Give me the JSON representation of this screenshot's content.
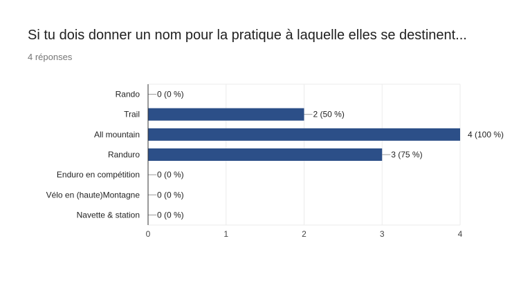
{
  "form": {
    "question": "Si tu dois donner un nom pour la pratique à laquelle elles se destinent...",
    "responses": "4 réponses"
  },
  "colors": {
    "bar": "#2c4f88",
    "grid": "#ebebeb",
    "axis": "#333333",
    "connector": "#999999"
  },
  "chart_data": {
    "type": "bar",
    "orientation": "horizontal",
    "categories": [
      "Rando",
      "Trail",
      "All mountain",
      "Randuro",
      "Enduro en compétition",
      "Vélo en (haute)Montagne",
      "Navette & station"
    ],
    "values": [
      0,
      2,
      4,
      3,
      0,
      0,
      0
    ],
    "value_labels": [
      "0 (0 %)",
      "2 (50 %)",
      "4 (100 %)",
      "3 (75 %)",
      "0 (0 %)",
      "0 (0 %)",
      "0 (0 %)"
    ],
    "xticks": [
      "0",
      "1",
      "2",
      "3",
      "4"
    ],
    "xlim": [
      0,
      4
    ],
    "grid": true,
    "title": "",
    "xlabel": "",
    "ylabel": ""
  }
}
